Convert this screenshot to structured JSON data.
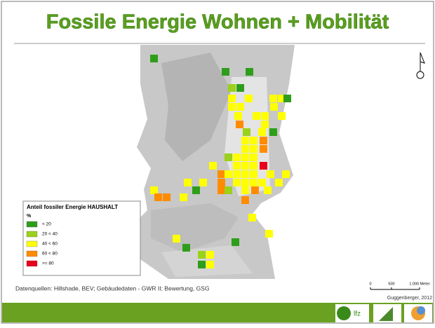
{
  "header": {
    "title": "Fossile Energie Wohnen + Mobilität"
  },
  "legend": {
    "title": "Anteil fossiler Energie HAUSHALT",
    "unit": "%",
    "items": [
      {
        "label": "< 20",
        "color": "#2e9e1a"
      },
      {
        "label": "20 < 40",
        "color": "#9bd11b"
      },
      {
        "label": "40 < 60",
        "color": "#ffff00"
      },
      {
        "label": "60 < 80",
        "color": "#ff8c00"
      },
      {
        "label": ">= 80",
        "color": "#e8001c"
      }
    ]
  },
  "scale": {
    "labels": [
      "0",
      "500",
      "1.000 Meter"
    ]
  },
  "footer": {
    "sources": "Datenquellen: Hillshade, BEV; Gebäudedaten - GWR II; Bewertung, GSG",
    "credit": "Guggenberger, 2012",
    "logo_text": "lfz"
  }
}
